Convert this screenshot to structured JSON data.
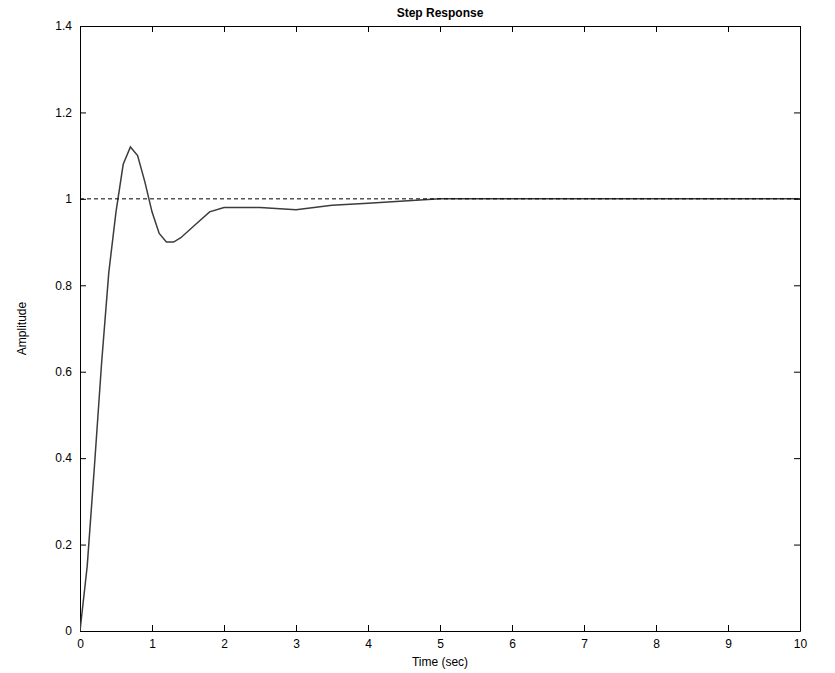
{
  "chart_data": {
    "type": "line",
    "title": "Step Response",
    "x_label": "Time (sec)",
    "y_label": "Amplitude",
    "xlim": [
      0,
      10
    ],
    "ylim": [
      0,
      1.4
    ],
    "xticks": [
      0,
      1,
      2,
      3,
      4,
      5,
      6,
      7,
      8,
      9,
      10
    ],
    "yticks": [
      0,
      0.2,
      0.4,
      0.6,
      0.8,
      1,
      1.2,
      1.4
    ],
    "grid": false,
    "series": [
      {
        "color": "#3c3c3c",
        "line_style": "solid",
        "x": [
          0,
          0.1,
          0.2,
          0.3,
          0.4,
          0.5,
          0.6,
          0.7,
          0.8,
          0.9,
          1.0,
          1.1,
          1.2,
          1.3,
          1.4,
          1.6,
          1.8,
          2.0,
          2.5,
          3.0,
          3.5,
          4.0,
          4.5,
          5.0,
          6,
          7,
          8,
          9,
          10
        ],
        "values": [
          0,
          0.15,
          0.38,
          0.62,
          0.83,
          0.97,
          1.08,
          1.12,
          1.1,
          1.04,
          0.97,
          0.92,
          0.9,
          0.9,
          0.91,
          0.94,
          0.97,
          0.98,
          0.98,
          0.975,
          0.985,
          0.99,
          0.995,
          1.0,
          1.0,
          1.0,
          1.0,
          1.0,
          1.0
        ]
      },
      {
        "color": "#000000",
        "line_style": "dashed",
        "x": [
          0,
          10
        ],
        "values": [
          1,
          1
        ]
      }
    ]
  }
}
